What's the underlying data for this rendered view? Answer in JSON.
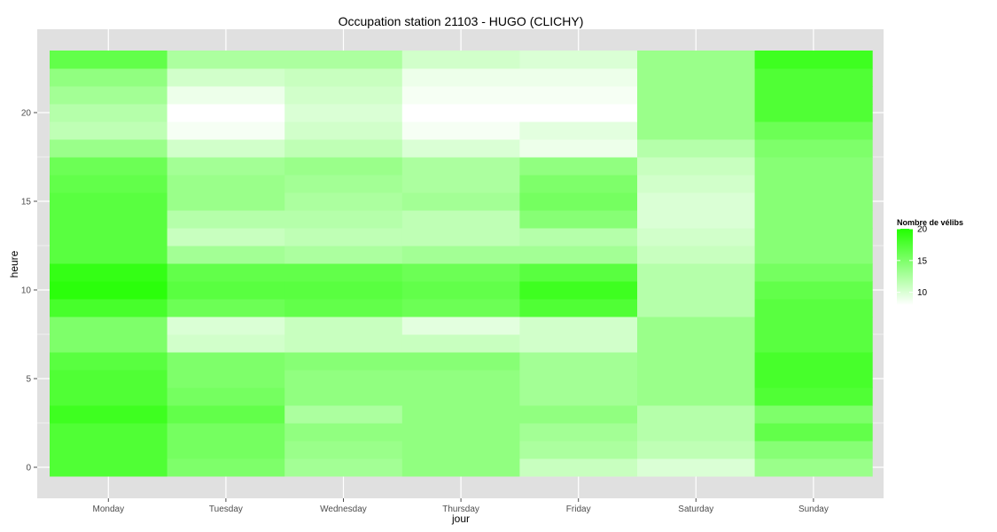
{
  "chart_data": {
    "type": "heatmap",
    "title": "Occupation station 21103 - HUGO (CLICHY)",
    "xlabel": "jour",
    "ylabel": "heure",
    "x_categories": [
      "Monday",
      "Tuesday",
      "Wednesday",
      "Thursday",
      "Friday",
      "Saturday",
      "Sunday"
    ],
    "y": [
      0,
      1,
      2,
      3,
      4,
      5,
      6,
      7,
      8,
      9,
      10,
      11,
      12,
      13,
      14,
      15,
      16,
      17,
      18,
      19,
      20,
      21,
      22,
      23
    ],
    "y_ticks": [
      0,
      5,
      10,
      15,
      20
    ],
    "ylim": [
      -0.5,
      23.5
    ],
    "grid": true,
    "values": [
      [
        17.5,
        15.0,
        13.0,
        14.0,
        11.0,
        10.0,
        13.5
      ],
      [
        17.5,
        15.5,
        13.5,
        14.0,
        12.5,
        11.5,
        14.5
      ],
      [
        17.5,
        15.5,
        14.0,
        14.0,
        13.0,
        12.0,
        16.5
      ],
      [
        18.5,
        16.5,
        12.5,
        14.0,
        14.0,
        12.0,
        15.0
      ],
      [
        17.5,
        15.5,
        14.0,
        14.0,
        13.0,
        13.5,
        17.5
      ],
      [
        17.5,
        15.0,
        14.0,
        14.0,
        13.0,
        13.5,
        18.0
      ],
      [
        17.0,
        15.0,
        14.5,
        14.5,
        13.0,
        13.5,
        18.0
      ],
      [
        15.0,
        10.5,
        11.0,
        11.0,
        10.5,
        13.5,
        17.0
      ],
      [
        15.0,
        10.0,
        11.0,
        9.5,
        10.5,
        13.5,
        17.0
      ],
      [
        18.0,
        16.0,
        16.5,
        16.0,
        17.5,
        12.0,
        17.0
      ],
      [
        19.5,
        17.0,
        17.0,
        16.5,
        18.5,
        12.0,
        16.5
      ],
      [
        19.0,
        16.5,
        16.5,
        16.0,
        17.0,
        12.0,
        15.5
      ],
      [
        17.0,
        13.0,
        12.5,
        13.0,
        13.0,
        11.0,
        14.5
      ],
      [
        17.0,
        11.0,
        11.5,
        11.5,
        12.0,
        10.5,
        14.5
      ],
      [
        17.0,
        12.0,
        12.0,
        11.5,
        14.5,
        10.0,
        14.5
      ],
      [
        17.0,
        13.5,
        12.5,
        13.0,
        15.5,
        10.0,
        14.5
      ],
      [
        16.5,
        13.5,
        13.0,
        12.5,
        15.0,
        10.5,
        14.5
      ],
      [
        16.0,
        13.0,
        13.5,
        12.5,
        14.0,
        11.0,
        14.5
      ],
      [
        13.5,
        10.5,
        11.5,
        10.0,
        9.0,
        12.0,
        15.0
      ],
      [
        11.5,
        8.5,
        10.5,
        8.5,
        9.5,
        13.5,
        16.0
      ],
      [
        12.0,
        8.0,
        10.0,
        8.0,
        8.0,
        13.5,
        17.5
      ],
      [
        13.0,
        9.0,
        10.5,
        8.5,
        8.5,
        13.5,
        17.5
      ],
      [
        14.0,
        10.5,
        11.0,
        9.0,
        9.0,
        13.5,
        17.5
      ],
      [
        16.5,
        12.5,
        12.5,
        10.5,
        10.0,
        13.5,
        18.5
      ]
    ],
    "color_scale": {
      "low": "#ffffff",
      "high": "#22ff00",
      "min": 8,
      "max": 20
    },
    "legend": {
      "title": "Nombre de vélibs",
      "ticks": [
        20,
        15,
        10
      ],
      "placement": "right"
    },
    "panel_background": "#e0e0e0",
    "grid_color": "#ffffff"
  }
}
